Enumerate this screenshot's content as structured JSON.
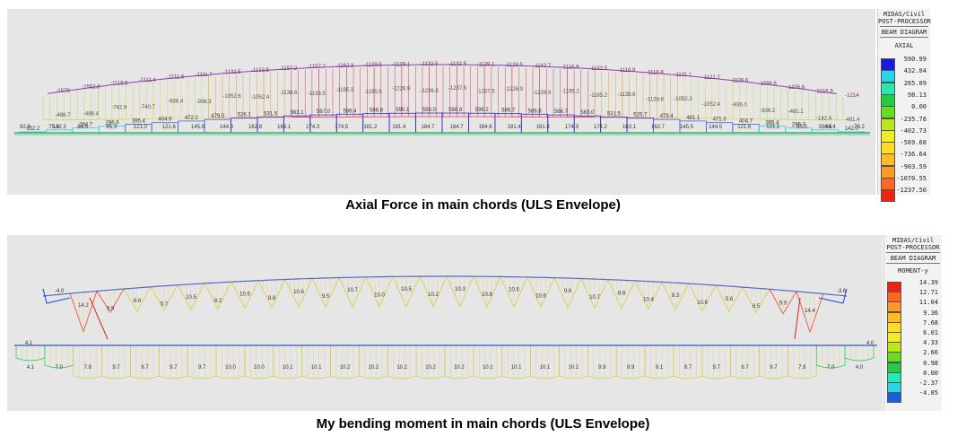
{
  "diagram1": {
    "caption": "Axial Force in main chords (ULS Envelope)",
    "legend": {
      "header": [
        "MIDAS/Civil",
        "POST-PROCESSOR",
        "BEAM DIAGRAM"
      ],
      "quantity": "AXIAL",
      "values": [
        "590.99",
        "432.04",
        "265.09",
        "98.13",
        "0.00",
        "-235.78",
        "-402.73",
        "-569.68",
        "-736.64",
        "-903.59",
        "-1070.55",
        "-1237.50"
      ],
      "colors": [
        "#1a1adb",
        "#22d8e8",
        "#29e8b0",
        "#22cc44",
        "#66dd22",
        "#bbe81a",
        "#eeee22",
        "#ffdd22",
        "#ffbb22",
        "#ff9922",
        "#ff6622",
        "#ee2211"
      ]
    },
    "top_labels": [
      "-1578",
      "-1552.6",
      "-1119.5",
      "-1111.4",
      "-1111.6",
      "-1111.7",
      "-1132.5",
      "-1133.5",
      "-1157.2",
      "-1157.7",
      "-1162.3",
      "-1129.5",
      "-1129.1",
      "-1132.5",
      "-1132.5",
      "-1129.1",
      "-1129.5",
      "-1142.7",
      "-1116.9",
      "-1132.5",
      "-1118.8",
      "-1116.8",
      "-1131.1",
      "-1121.2",
      "-1106.6",
      "-1096.6",
      "-1106.6",
      "-1216.9",
      "-1214"
    ],
    "mid_labels": [
      "-486.7",
      "-486.4",
      "-742.9",
      "-740.7",
      "-936.4",
      "-936.3",
      "-1052.6",
      "-1052.4",
      "-1138.6",
      "-1138.5",
      "-1195.3",
      "-1195.5",
      "-1226.9",
      "-1226.9",
      "-1237.5",
      "-1237.5",
      "-1226.9",
      "-1226.9",
      "-1195.2",
      "-1195.2",
      "-1138.6",
      "-1138.6",
      "-1052.3",
      "-1052.4",
      "-936.0",
      "-936.2",
      "-481.1",
      "-142.4",
      "-481.4"
    ],
    "tension_labels": [
      "132.2",
      "142.3",
      "284.7",
      "296.9",
      "395.4",
      "404.9",
      "472.2",
      "479.5",
      "526.1",
      "531.5",
      "563.1",
      "567.0",
      "586.4",
      "586.8",
      "590.1",
      "599.0",
      "598.8",
      "598.2",
      "586.7",
      "586.8",
      "566.7",
      "563.0",
      "531.5",
      "525.7",
      "479.4",
      "481.1",
      "471.3",
      "404.7",
      "395.4",
      "296.3",
      "284.5",
      "142.0"
    ],
    "bottom_labels": [
      "92.8",
      "79.3",
      "84.5",
      "85.3",
      "121.0",
      "121.6",
      "145.9",
      "144.3",
      "162.8",
      "163.1",
      "174.3",
      "174.5",
      "181.2",
      "181.4",
      "184.7",
      "184.7",
      "184.6",
      "181.4",
      "181.3",
      "174.3",
      "174.2",
      "163.1",
      "162.7",
      "145.5",
      "144.5",
      "121.6",
      "121.1",
      "85.0",
      "84.4",
      "79.2"
    ]
  },
  "diagram2": {
    "caption": "My bending moment in main chords (ULS Envelope)",
    "legend": {
      "header": [
        "MIDAS/Civil",
        "POST-PROCESSOR",
        "BEAM DIAGRAM"
      ],
      "quantity": "MOMENT-y",
      "values": [
        "14.39",
        "12.71",
        "11.04",
        "9.36",
        "7.68",
        "6.01",
        "4.33",
        "2.66",
        "0.98",
        "0.00",
        "-2.37",
        "-4.05"
      ],
      "colors": [
        "#ee2211",
        "#ff6622",
        "#ff9922",
        "#ffbb22",
        "#ffdd22",
        "#eeee22",
        "#bbe81a",
        "#66dd22",
        "#22cc44",
        "#29e8b0",
        "#22d8e8",
        "#1a60db"
      ]
    },
    "arch_end_labels": [
      "-4.0",
      "-3.6"
    ],
    "top_labels": [
      "14.2",
      "9.9",
      "8.6",
      "5.7",
      "10.5",
      "8.2",
      "10.5",
      "8.8",
      "10.6",
      "9.5",
      "10.7",
      "10.0",
      "10.5",
      "10.2",
      "10.3",
      "10.8",
      "10.5",
      "10.6",
      "9.6",
      "10.7",
      "8.8",
      "10.4",
      "8.3",
      "10.6",
      "5.6",
      "8.5",
      "9.9",
      "14.4"
    ],
    "deck_end_labels": [
      "4.1",
      "4.0"
    ],
    "bottom_labels": [
      "4.1",
      "7.0",
      "7.8",
      "9.7",
      "9.7",
      "9.7",
      "9.7",
      "10.0",
      "10.0",
      "10.1",
      "10.1",
      "10.2",
      "10.2",
      "10.2",
      "10.2",
      "10.2",
      "10.1",
      "10.1",
      "10.1",
      "10.1",
      "9.9",
      "9.9",
      "9.1",
      "9.7",
      "9.7",
      "9.7",
      "9.7",
      "7.8",
      "7.0",
      "4.0"
    ]
  }
}
